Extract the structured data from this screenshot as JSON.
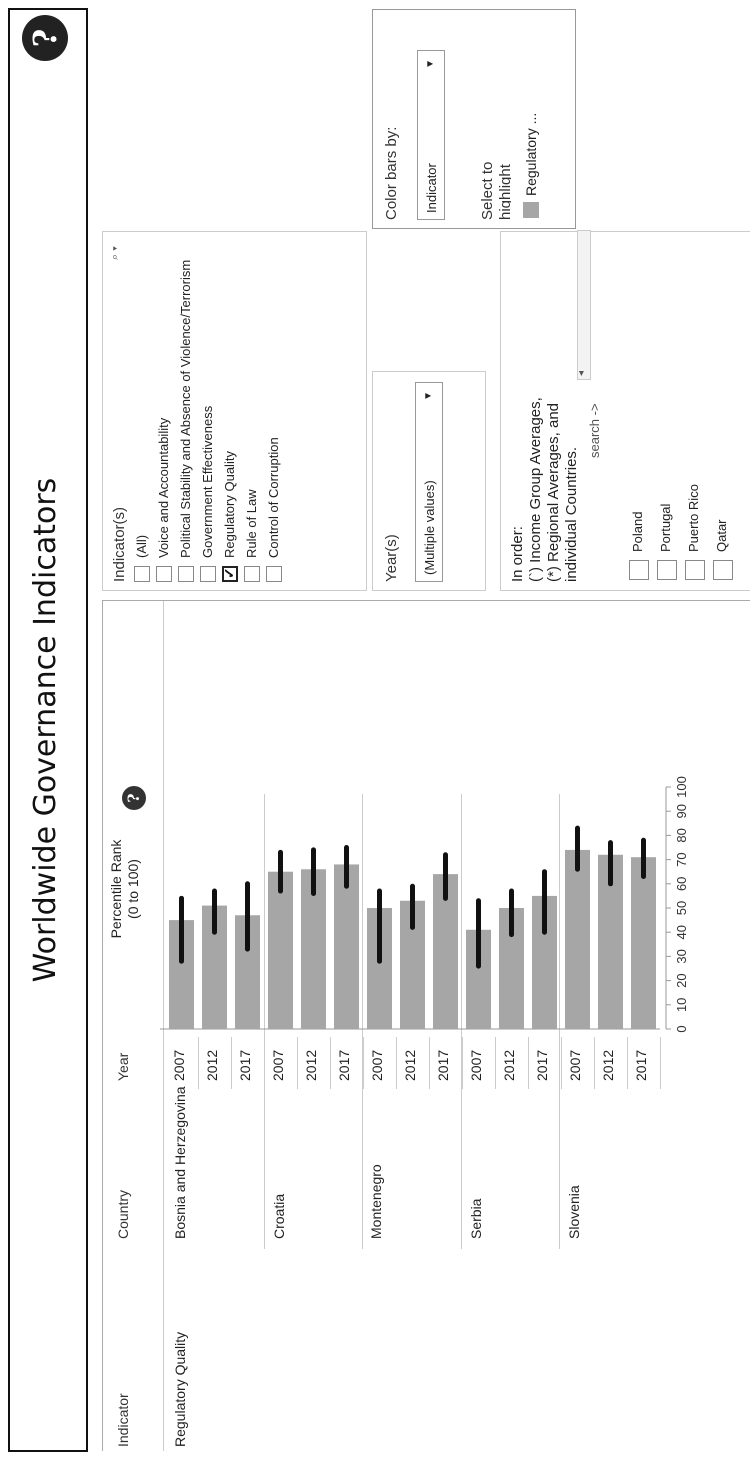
{
  "header": {
    "title": "Worldwide Governance Indicators",
    "help_glyph": "?"
  },
  "table": {
    "columns": {
      "indicator": "Indicator",
      "country": "Country",
      "year": "Year"
    },
    "indicator_value": "Regulatory Quality",
    "countries": [
      "Bosnia and Herzegovina",
      "Croatia",
      "Montenegro",
      "Serbia",
      "Slovenia"
    ]
  },
  "chart_data": {
    "type": "bar",
    "title": "Percentile Rank (0 to 100)",
    "title_lines": [
      "Percentile Rank",
      "(0 to 100)"
    ],
    "categories": [
      "Bosnia and Herzegovina 2007",
      "Bosnia and Herzegovina 2012",
      "Bosnia and Herzegovina 2017",
      "Croatia 2007",
      "Croatia 2012",
      "Croatia 2017",
      "Montenegro 2007",
      "Montenegro 2012",
      "Montenegro 2017",
      "Serbia 2007",
      "Serbia 2012",
      "Serbia 2017",
      "Slovenia 2007",
      "Slovenia 2012",
      "Slovenia 2017"
    ],
    "years": [
      "2007",
      "2012",
      "2017",
      "2007",
      "2012",
      "2017",
      "2007",
      "2012",
      "2017",
      "2007",
      "2012",
      "2017",
      "2007",
      "2012",
      "2017"
    ],
    "values": [
      45,
      51,
      47,
      65,
      66,
      68,
      50,
      53,
      64,
      41,
      50,
      55,
      74,
      72,
      71
    ],
    "error_low": [
      28,
      40,
      33,
      57,
      56,
      59,
      28,
      42,
      54,
      26,
      39,
      40,
      66,
      60,
      63
    ],
    "error_high": [
      54,
      57,
      60,
      73,
      74,
      75,
      57,
      59,
      72,
      53,
      57,
      65,
      83,
      77,
      78
    ],
    "xlim": [
      0,
      100
    ],
    "ticks": [
      0,
      10,
      20,
      30,
      40,
      50,
      60,
      70,
      80,
      90,
      100
    ],
    "bar_color": "#a6a6a6",
    "error_color": "#111111",
    "grid": false
  },
  "filters": {
    "indicators": {
      "label": "Indicator(s)",
      "options": [
        {
          "label": "(All)",
          "checked": false
        },
        {
          "label": "Voice and Accountability",
          "checked": false
        },
        {
          "label": "Political Stability and Absence of Violence/Terrorism",
          "checked": false
        },
        {
          "label": "Government Effectiveness",
          "checked": false
        },
        {
          "label": "Regulatory Quality",
          "checked": true
        },
        {
          "label": "Rule of Law",
          "checked": false
        },
        {
          "label": "Control of Corruption",
          "checked": false
        }
      ]
    },
    "years": {
      "label": "Year(s)",
      "value": "(Multiple values)"
    },
    "color_by": {
      "label": "Color bars by:",
      "value": "Indicator"
    },
    "highlight": {
      "label_line1": "Select to",
      "label_line2": "highlight",
      "legend_item": "Regulatory ..."
    },
    "countries": {
      "note_lines": [
        "In order:",
        "(`) Income Group Averages,",
        "(*) Regional Averages, and",
        "individual Countries."
      ],
      "search_hint": "search ->",
      "options": [
        "Poland",
        "Portugal",
        "Puerto Rico",
        "Qatar"
      ]
    }
  }
}
